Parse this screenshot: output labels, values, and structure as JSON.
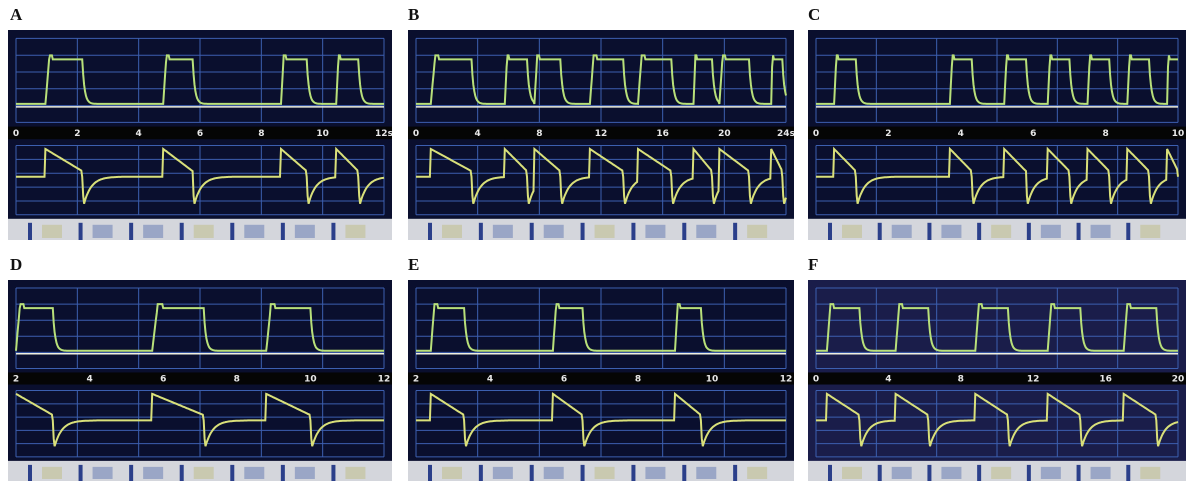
{
  "panels": [
    {
      "label": "A",
      "ticks": [
        "0",
        "2",
        "4",
        "6",
        "8",
        "10",
        "12s"
      ]
    },
    {
      "label": "B",
      "ticks": [
        "0",
        "4",
        "8",
        "12",
        "16",
        "20",
        "24s"
      ]
    },
    {
      "label": "C",
      "ticks": [
        "0",
        "2",
        "4",
        "6",
        "8",
        "10"
      ]
    },
    {
      "label": "D",
      "ticks": [
        "2",
        "4",
        "6",
        "8",
        "10",
        "12"
      ]
    },
    {
      "label": "E",
      "ticks": [
        "2",
        "4",
        "6",
        "8",
        "10",
        "12"
      ]
    },
    {
      "label": "F",
      "ticks": [
        "0",
        "4",
        "8",
        "12",
        "16",
        "20"
      ]
    }
  ]
}
